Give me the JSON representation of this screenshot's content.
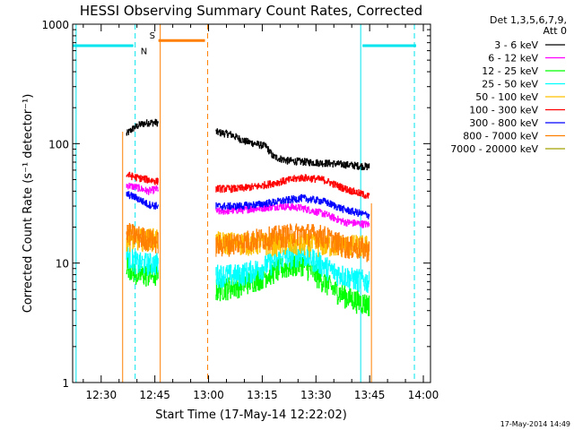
{
  "chart_data": {
    "type": "line",
    "title": "HESSI Observing Summary Count Rates, Corrected",
    "xlabel": "Start Time (17-May-14 12:22:02)",
    "ylabel": "Corrected Count Rate (s⁻¹ detector⁻¹)",
    "ylog": true,
    "ylim": [
      1,
      1000
    ],
    "xlim": [
      "12:22:02",
      "14:02:00"
    ],
    "x_ticks": [
      "12:30",
      "12:45",
      "13:00",
      "13:15",
      "13:30",
      "13:45",
      "14:00"
    ],
    "y_ticks": [
      "1",
      "10",
      "100",
      "1000"
    ],
    "legend_header": [
      "Det 1,3,5,6,7,9,",
      "Att 0"
    ],
    "legend_position": "right",
    "timestamp": "17-May-2014 14:49",
    "flags": {
      "night_label": "N",
      "saa_label": "S",
      "night_bar_color": "#00e5ee",
      "saa_bar_color": "#ff7f00"
    },
    "segments": [
      {
        "start": "12:37:00",
        "end": "12:46:00"
      },
      {
        "start": "13:02:00",
        "end": "13:45:00"
      }
    ],
    "series": [
      {
        "name": "3 - 6 keV",
        "color": "#000000",
        "times": [
          "12:37",
          "12:39",
          "12:41",
          "12:43",
          "12:46",
          "13:02",
          "13:06",
          "13:10",
          "13:13",
          "13:16",
          "13:18",
          "13:22",
          "13:28",
          "13:35",
          "13:40",
          "13:45"
        ],
        "values": [
          120,
          135,
          145,
          150,
          150,
          125,
          120,
          105,
          100,
          95,
          78,
          72,
          70,
          68,
          66,
          64
        ]
      },
      {
        "name": "6 - 12 keV",
        "color": "#ff00ff",
        "times": [
          "12:37",
          "12:40",
          "12:43",
          "12:46",
          "13:02",
          "13:10",
          "13:20",
          "13:26",
          "13:32",
          "13:38",
          "13:45"
        ],
        "values": [
          45,
          43,
          40,
          42,
          27,
          28,
          30,
          29,
          26,
          22,
          21
        ]
      },
      {
        "name": "12 - 25 keV",
        "color": "#00ff00",
        "times": [
          "12:37",
          "12:40",
          "12:43",
          "12:46",
          "13:02",
          "13:08",
          "13:14",
          "13:20",
          "13:26",
          "13:30",
          "13:35",
          "13:40",
          "13:45"
        ],
        "values": [
          10,
          8,
          8,
          8,
          6,
          6.5,
          7.5,
          9,
          10,
          8,
          6,
          5,
          4.5
        ]
      },
      {
        "name": "25 - 50 keV",
        "color": "#00ffff",
        "times": [
          "12:37",
          "12:40",
          "12:43",
          "12:46",
          "13:02",
          "13:08",
          "13:14",
          "13:20",
          "13:26",
          "13:30",
          "13:35",
          "13:40",
          "13:45"
        ],
        "values": [
          12,
          10,
          10,
          10,
          8,
          8,
          9,
          11,
          12,
          10.5,
          8.5,
          7.5,
          7
        ]
      },
      {
        "name": "50 - 100 keV",
        "color": "#ffc000",
        "times": [
          "12:37",
          "12:46",
          "13:02",
          "13:45"
        ],
        "values": [
          16,
          16,
          15,
          14
        ]
      },
      {
        "name": "100 - 300 keV",
        "color": "#ff0000",
        "times": [
          "12:37",
          "12:40",
          "12:43",
          "12:46",
          "13:02",
          "13:08",
          "13:14",
          "13:20",
          "13:26",
          "13:32",
          "13:38",
          "13:45"
        ],
        "values": [
          55,
          52,
          50,
          48,
          42,
          42,
          44,
          48,
          52,
          50,
          42,
          36
        ]
      },
      {
        "name": "300 - 800 keV",
        "color": "#0000ff",
        "times": [
          "12:37",
          "12:40",
          "12:43",
          "12:46",
          "13:02",
          "13:08",
          "13:14",
          "13:20",
          "13:26",
          "13:32",
          "13:38",
          "13:45"
        ],
        "values": [
          38,
          35,
          31,
          30,
          30,
          30,
          31,
          33,
          35,
          33,
          28,
          25
        ]
      },
      {
        "name": "800 - 7000 keV",
        "color": "#ff7f00",
        "times": [
          "12:37",
          "12:40",
          "12:43",
          "12:46",
          "13:02",
          "13:08",
          "13:14",
          "13:20",
          "13:26",
          "13:32",
          "13:38",
          "13:45"
        ],
        "values": [
          18,
          17,
          16,
          15,
          14,
          15,
          16,
          17,
          18,
          17,
          14,
          13
        ]
      },
      {
        "name": "7000 - 20000 keV",
        "color": "#a0a000",
        "times": [],
        "values": []
      }
    ]
  }
}
